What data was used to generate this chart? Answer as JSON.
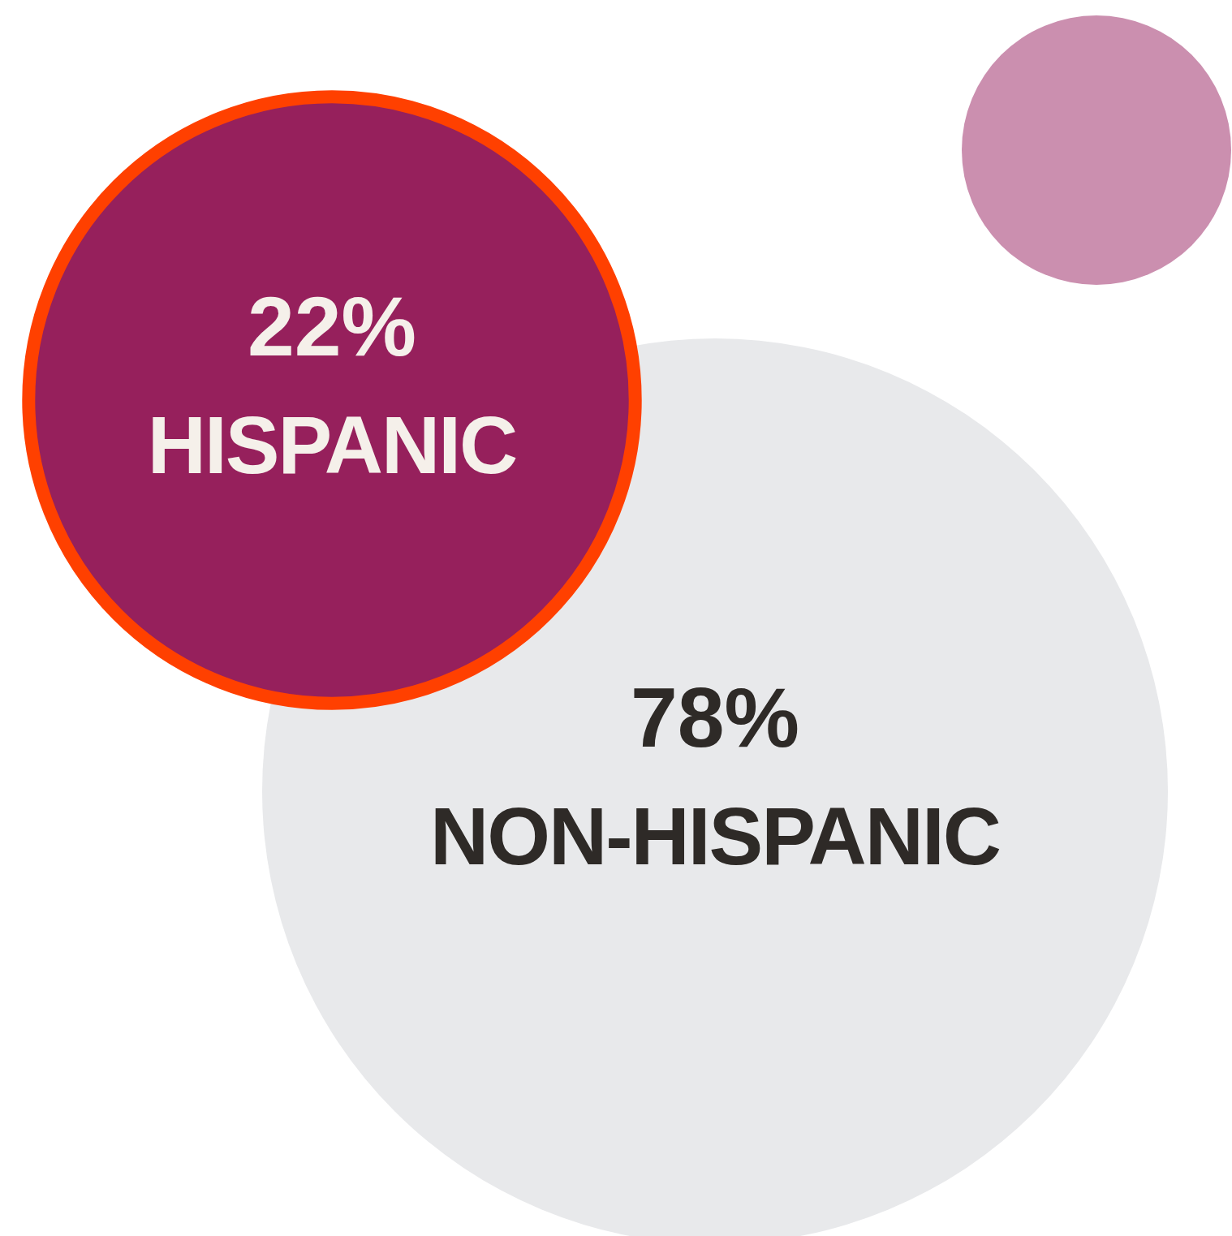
{
  "chart_data": {
    "type": "other",
    "categories": [
      "HISPANIC",
      "NON-HISPANIC"
    ],
    "values": [
      22,
      78
    ],
    "value_labels": [
      "22%",
      "78%"
    ],
    "colors": [
      "#96205c",
      "#e8e9eb"
    ]
  }
}
